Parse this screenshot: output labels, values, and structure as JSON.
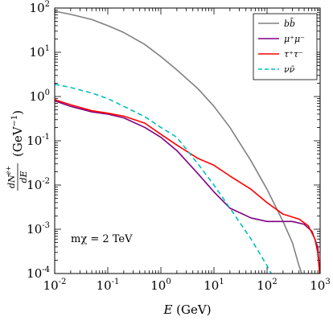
{
  "chart_data": {
    "type": "line",
    "xlabel": "E (GeV)",
    "ylabel": "dN^{e+}/dE (GeV^{-1})",
    "x_scale": "log",
    "y_scale": "log",
    "xlim": [
      0.01,
      1000
    ],
    "ylim": [
      0.0001,
      100
    ],
    "x_ticks": [
      {
        "base": "10",
        "exp": "-2",
        "value": 0.01
      },
      {
        "base": "10",
        "exp": "-1",
        "value": 0.1
      },
      {
        "base": "10",
        "exp": "0",
        "value": 1
      },
      {
        "base": "10",
        "exp": "1",
        "value": 10
      },
      {
        "base": "10",
        "exp": "2",
        "value": 100
      },
      {
        "base": "10",
        "exp": "3",
        "value": 1000
      }
    ],
    "y_ticks": [
      {
        "base": "10",
        "exp": "-4",
        "value": 0.0001
      },
      {
        "base": "10",
        "exp": "-3",
        "value": 0.001
      },
      {
        "base": "10",
        "exp": "-2",
        "value": 0.01
      },
      {
        "base": "10",
        "exp": "-1",
        "value": 0.1
      },
      {
        "base": "10",
        "exp": "0",
        "value": 1
      },
      {
        "base": "10",
        "exp": "1",
        "value": 10
      },
      {
        "base": "10",
        "exp": "2",
        "value": 100
      }
    ],
    "annotation": "mχ = 2 TeV",
    "legend_position": "top-right",
    "series": [
      {
        "name": "bb̄",
        "color": "#808080",
        "dash": "solid",
        "points": [
          [
            0.01,
            85
          ],
          [
            0.02,
            72
          ],
          [
            0.05,
            55
          ],
          [
            0.1,
            40
          ],
          [
            0.2,
            28
          ],
          [
            0.5,
            15
          ],
          [
            1,
            8
          ],
          [
            2,
            4
          ],
          [
            5,
            1.5
          ],
          [
            10,
            0.6
          ],
          [
            20,
            0.2
          ],
          [
            50,
            0.035
          ],
          [
            100,
            0.008
          ],
          [
            200,
            0.0015
          ],
          [
            300,
            0.0005
          ],
          [
            400,
            0.00015
          ],
          [
            450,
            0.0001
          ]
        ]
      },
      {
        "name": "μ⁺μ⁻",
        "color": "#800080",
        "dash": "solid",
        "points": [
          [
            0.01,
            0.8
          ],
          [
            0.02,
            0.6
          ],
          [
            0.05,
            0.45
          ],
          [
            0.1,
            0.4
          ],
          [
            0.2,
            0.33
          ],
          [
            0.5,
            0.2
          ],
          [
            1,
            0.12
          ],
          [
            2,
            0.06
          ],
          [
            5,
            0.018
          ],
          [
            10,
            0.007
          ],
          [
            20,
            0.003
          ],
          [
            50,
            0.0018
          ],
          [
            100,
            0.0015
          ],
          [
            200,
            0.0015
          ],
          [
            300,
            0.0015
          ],
          [
            500,
            0.0013
          ],
          [
            700,
            0.0009
          ],
          [
            900,
            0.0004
          ],
          [
            960,
            0.00015
          ],
          [
            980,
            0.0001
          ]
        ]
      },
      {
        "name": "τ⁺τ⁻",
        "color": "#ff0000",
        "dash": "solid",
        "points": [
          [
            0.01,
            0.85
          ],
          [
            0.02,
            0.65
          ],
          [
            0.05,
            0.48
          ],
          [
            0.1,
            0.42
          ],
          [
            0.2,
            0.36
          ],
          [
            0.5,
            0.25
          ],
          [
            1,
            0.14
          ],
          [
            2,
            0.08
          ],
          [
            5,
            0.04
          ],
          [
            10,
            0.028
          ],
          [
            20,
            0.016
          ],
          [
            50,
            0.008
          ],
          [
            100,
            0.004
          ],
          [
            200,
            0.0022
          ],
          [
            400,
            0.0017
          ],
          [
            600,
            0.0012
          ],
          [
            800,
            0.0006
          ],
          [
            900,
            0.0003
          ],
          [
            950,
            0.00015
          ],
          [
            980,
            0.0001
          ]
        ]
      },
      {
        "name": "νν̄",
        "color": "#00bfbf",
        "dash": "dashed",
        "points": [
          [
            0.01,
            1.9
          ],
          [
            0.02,
            1.6
          ],
          [
            0.05,
            1.2
          ],
          [
            0.1,
            0.9
          ],
          [
            0.2,
            0.6
          ],
          [
            0.5,
            0.35
          ],
          [
            1,
            0.2
          ],
          [
            2,
            0.12
          ],
          [
            5,
            0.03
          ],
          [
            10,
            0.01
          ],
          [
            20,
            0.003
          ],
          [
            50,
            0.0006
          ],
          [
            100,
            0.00015
          ],
          [
            120,
            0.0001
          ]
        ]
      }
    ]
  }
}
